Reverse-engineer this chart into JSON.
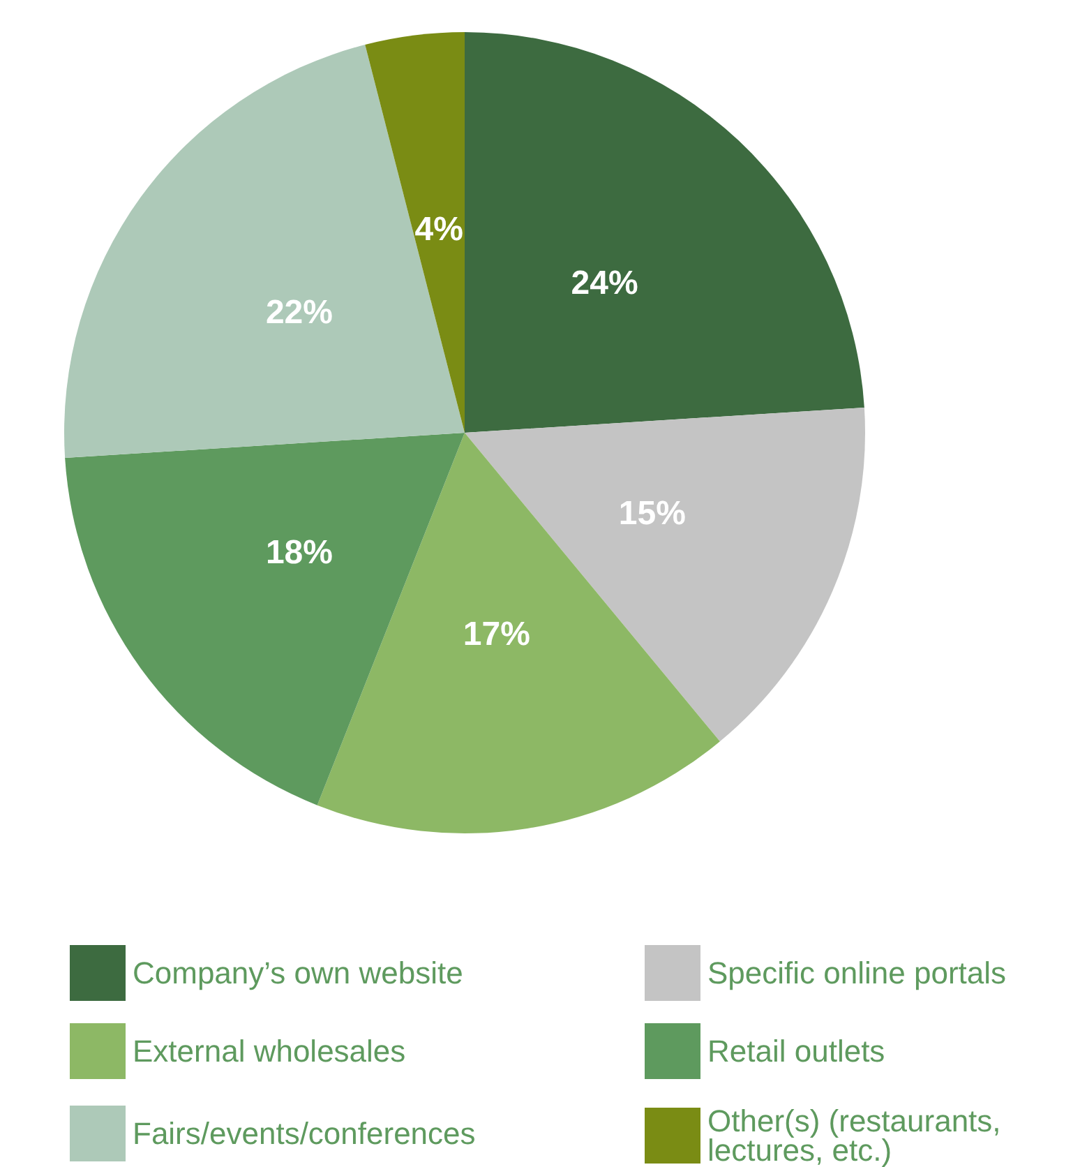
{
  "chart_data": {
    "type": "pie",
    "categories": [
      "Company’s own website",
      "Specific online portals",
      "External wholesales",
      "Retail outlets",
      "Fairs/events/conferences",
      "Other(s) (restaurants, lectures, etc.)"
    ],
    "values": [
      24,
      15,
      17,
      18,
      22,
      4
    ],
    "value_labels": [
      "24%",
      "15%",
      "17%",
      "18%",
      "22%",
      "4%"
    ],
    "colors": [
      "#3d6b40",
      "#c4c4c4",
      "#8db865",
      "#5e9a5e",
      "#adc9b8",
      "#7a8c14"
    ],
    "legend": "bottom"
  }
}
